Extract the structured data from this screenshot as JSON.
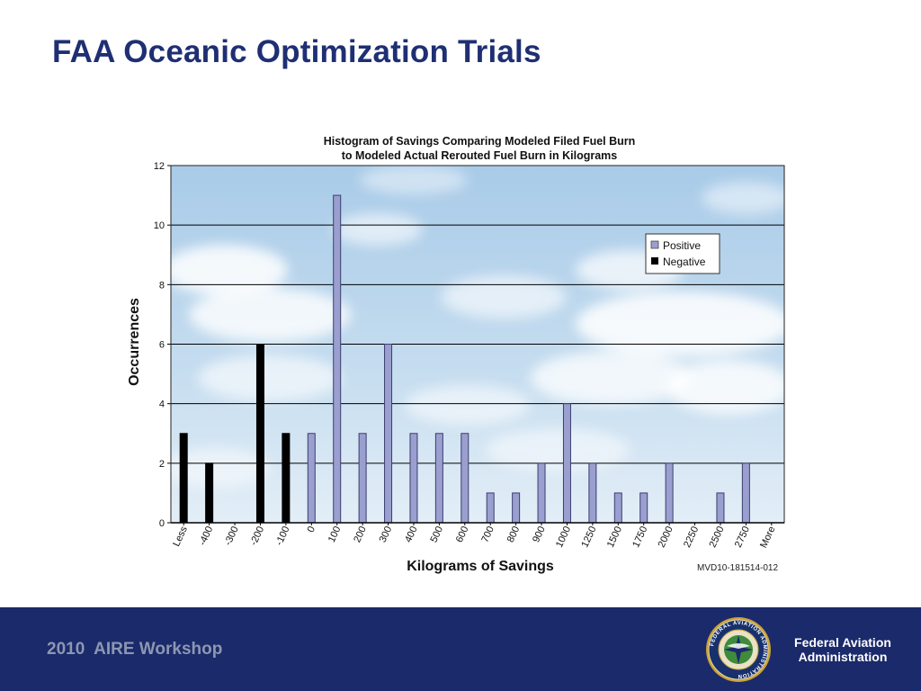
{
  "slide": {
    "title": "FAA Oceanic Optimization Trials"
  },
  "footer": {
    "workshop": "2010  AIRE Workshop",
    "agency_line1": "Federal Aviation",
    "agency_line2": "Administration",
    "seal_text": "FEDERAL AVIATION ADMINISTRATION"
  },
  "chart_data": {
    "type": "bar",
    "title_line1": "Histogram of Savings Comparing Modeled Filed Fuel Burn",
    "title_line2": "to Modeled Actual Rerouted Fuel Burn in Kilograms",
    "xlabel": "Kilograms of Savings",
    "ylabel": "Occurrences",
    "ylim": [
      0,
      12
    ],
    "yticks": [
      "0",
      "2",
      "4",
      "6",
      "8",
      "10",
      "12"
    ],
    "grid": true,
    "legend_position": "top-right",
    "background": "sky-and-clouds",
    "reference_label": "MVD10-181514-012",
    "categories": [
      "Less",
      "-400",
      "-300",
      "-200",
      "-100",
      "0",
      "100",
      "200",
      "300",
      "400",
      "500",
      "600",
      "700",
      "800",
      "900",
      "1000",
      "1250",
      "1500",
      "1750",
      "2000",
      "2250",
      "2500",
      "2750",
      "More"
    ],
    "series": [
      {
        "name": "Positive",
        "color": "#9b9fcf",
        "values": [
          0,
          0,
          0,
          0,
          0,
          3,
          11,
          3,
          6,
          3,
          3,
          3,
          1,
          1,
          2,
          4,
          2,
          1,
          1,
          2,
          0,
          1,
          2,
          0
        ]
      },
      {
        "name": "Negative",
        "color": "#000000",
        "values": [
          3,
          2,
          0,
          6,
          3,
          0,
          0,
          0,
          0,
          0,
          0,
          0,
          0,
          0,
          0,
          0,
          0,
          0,
          0,
          0,
          0,
          0,
          0,
          0
        ]
      }
    ]
  }
}
